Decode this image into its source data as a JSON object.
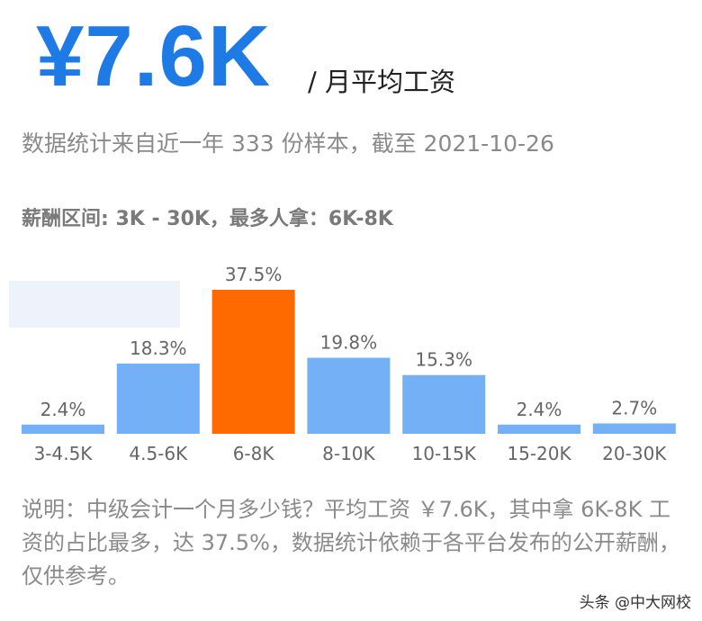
{
  "header": {
    "salary": "¥7.6K",
    "unit": "/ 月平均工资",
    "sample_note": "数据统计来自近一年 333 份样本，截至 2021-10-26",
    "range_text": "薪酬区间: 3K - 30K，最多人拿：6K-8K"
  },
  "colors": {
    "accent": "#1e7be6",
    "bar": "#74b0f5",
    "highlight_bar": "#ff6a00",
    "text_gray": "#8a8a8a"
  },
  "chart_data": {
    "type": "bar",
    "categories": [
      "3-4.5K",
      "4.5-6K",
      "6-8K",
      "8-10K",
      "10-15K",
      "15-20K",
      "20-30K"
    ],
    "values": [
      2.4,
      18.3,
      37.5,
      19.8,
      15.3,
      2.4,
      2.7
    ],
    "value_labels": [
      "2.4%",
      "18.3%",
      "37.5%",
      "19.8%",
      "15.3%",
      "2.4%",
      "2.7%"
    ],
    "highlight_index": 2,
    "title": "",
    "xlabel": "",
    "ylabel": "",
    "ylim": [
      0,
      37.5
    ],
    "grid": false
  },
  "explanation": "说明：中级会计一个月多少钱？平均工资 ￥7.6K，其中拿 6K-8K 工资的占比最多，达 37.5%，数据统计依赖于各平台发布的公开薪酬，仅供参考。",
  "watermark": "头条 @中大网校"
}
